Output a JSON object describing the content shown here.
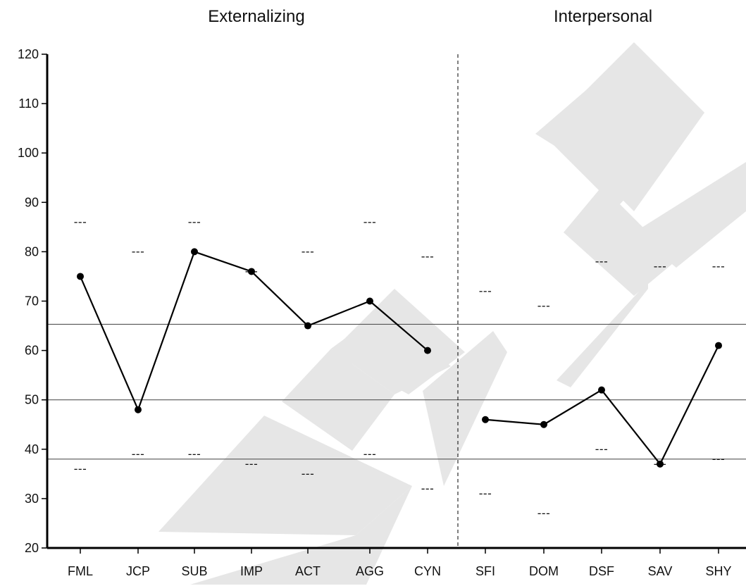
{
  "chart_data": {
    "type": "line",
    "groups": [
      {
        "title": "Externalizing",
        "categories": [
          "FML",
          "JCP",
          "SUB",
          "IMP",
          "ACT",
          "AGG",
          "CYN"
        ]
      },
      {
        "title": "Interpersonal",
        "categories": [
          "SFI",
          "DOM",
          "DSF",
          "SAV",
          "SHY"
        ]
      }
    ],
    "categories": [
      "FML",
      "JCP",
      "SUB",
      "IMP",
      "ACT",
      "AGG",
      "CYN",
      "SFI",
      "DOM",
      "DSF",
      "SAV",
      "SHY"
    ],
    "series": [
      {
        "values": [
          75,
          48,
          80,
          76,
          65,
          70,
          60,
          null,
          null,
          null,
          null,
          null
        ]
      },
      {
        "values": [
          null,
          null,
          null,
          null,
          null,
          null,
          null,
          46,
          45,
          52,
          37,
          61
        ]
      }
    ],
    "upper_marks": [
      86,
      80,
      86,
      76,
      80,
      86,
      79,
      72,
      69,
      78,
      77,
      77
    ],
    "lower_marks": [
      36,
      39,
      39,
      37,
      35,
      39,
      32,
      31,
      27,
      40,
      37,
      38
    ],
    "dash_text": "---",
    "reference_lines": [
      65.3,
      50,
      38
    ],
    "y_ticks": [
      "20",
      "30",
      "40",
      "50",
      "60",
      "70",
      "80",
      "90",
      "100",
      "110",
      "120"
    ],
    "ylim": [
      20,
      120
    ],
    "xlabel": "",
    "ylabel": "",
    "watermark": "SAMPLE",
    "colors": {
      "line": "#000000",
      "reference": "#555555",
      "watermark": "#e6e6e6"
    }
  }
}
